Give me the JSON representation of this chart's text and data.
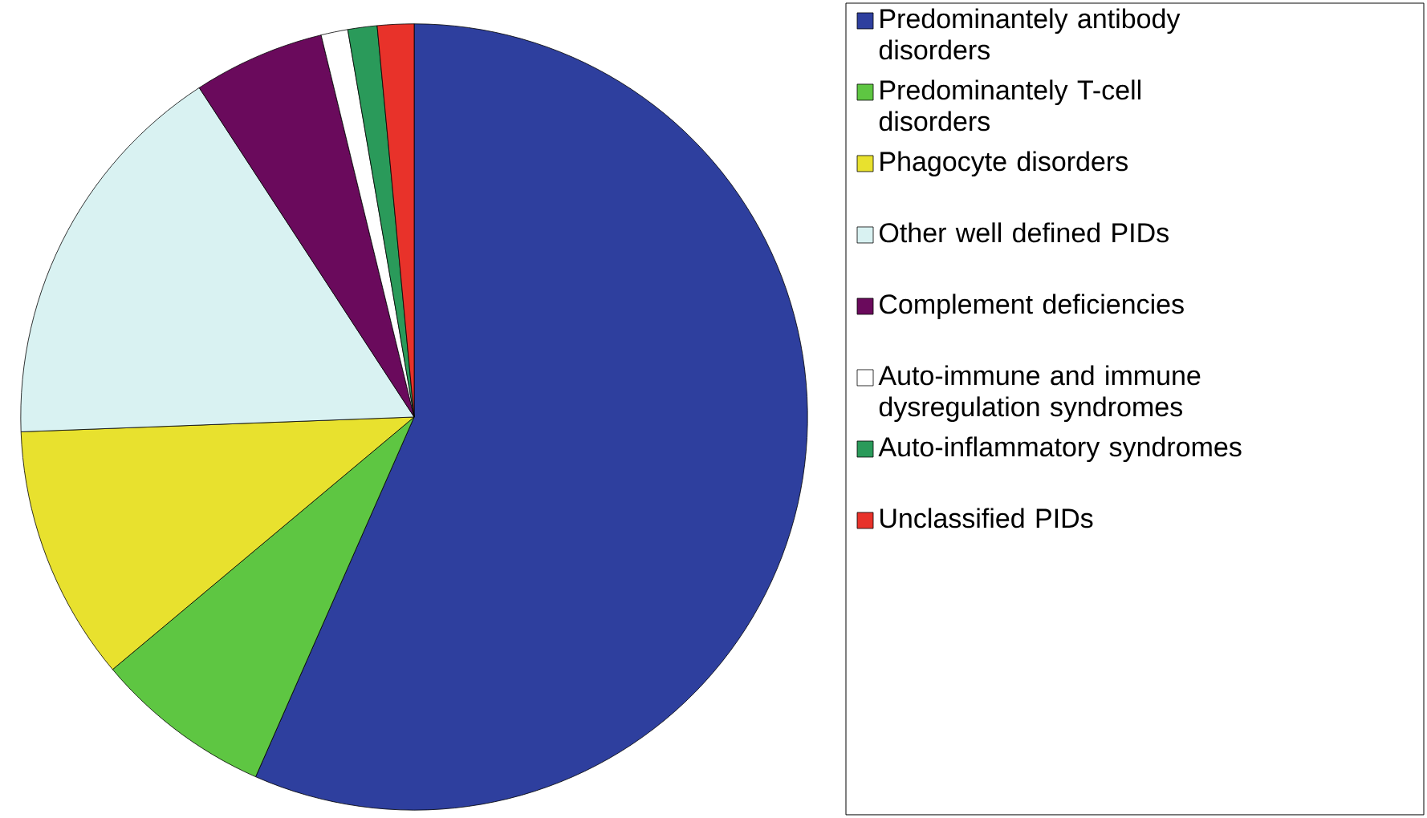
{
  "chart_data": {
    "type": "pie",
    "legend": "right",
    "categories": [
      "Predominantely antibody disorders",
      "Predominantely T-cell disorders",
      "Phagocyte disorders",
      "Other well defined PIDs",
      "Complement deficiencies",
      "Auto-immune and immune dysregulation syndromes",
      "Auto-inflammatory syndromes",
      "Unclassified PIDs"
    ],
    "values": [
      56.6,
      7.3,
      10.5,
      16.4,
      5.4,
      1.1,
      1.2,
      1.5
    ],
    "colors": [
      "#2e3f9e",
      "#5ec642",
      "#e8e12e",
      "#d9f2f2",
      "#6a0a5c",
      "#ffffff",
      "#2a9a5a",
      "#e8322a"
    ]
  }
}
